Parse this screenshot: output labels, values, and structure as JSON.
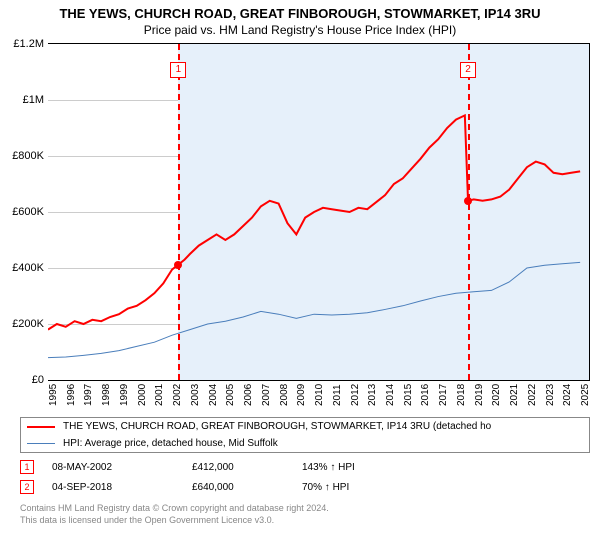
{
  "header": {
    "title": "THE YEWS, CHURCH ROAD, GREAT FINBOROUGH, STOWMARKET, IP14 3RU",
    "subtitle": "Price paid vs. HM Land Registry's House Price Index (HPI)"
  },
  "chart": {
    "type": "line",
    "background_color": "#ffffff",
    "grid_color": "#cccccc",
    "shade_color": "#e6f0fa",
    "refline_color": "#ff0000",
    "ylim": [
      0,
      1200000
    ],
    "ytick_step": 200000,
    "yticks": [
      {
        "v": 0,
        "label": "£0"
      },
      {
        "v": 200000,
        "label": "£200K"
      },
      {
        "v": 400000,
        "label": "£400K"
      },
      {
        "v": 600000,
        "label": "£600K"
      },
      {
        "v": 800000,
        "label": "£800K"
      },
      {
        "v": 1000000,
        "label": "£1M"
      },
      {
        "v": 1200000,
        "label": "£1.2M"
      }
    ],
    "xlim": [
      1995,
      2025.5
    ],
    "xticks": [
      1995,
      1996,
      1997,
      1998,
      1999,
      2000,
      2001,
      2002,
      2003,
      2004,
      2005,
      2006,
      2007,
      2008,
      2009,
      2010,
      2011,
      2012,
      2013,
      2014,
      2015,
      2016,
      2017,
      2018,
      2019,
      2020,
      2021,
      2022,
      2023,
      2024,
      2025
    ],
    "shade_from_x": 2002.35,
    "markers": [
      {
        "n": "1",
        "x": 2002.35,
        "y": 412000
      },
      {
        "n": "2",
        "x": 2018.68,
        "y": 640000
      }
    ],
    "series": [
      {
        "name": "price",
        "color": "#ff0000",
        "width": 2,
        "points": [
          [
            1995,
            180000
          ],
          [
            1995.5,
            200000
          ],
          [
            1996,
            190000
          ],
          [
            1996.5,
            210000
          ],
          [
            1997,
            200000
          ],
          [
            1997.5,
            215000
          ],
          [
            1998,
            210000
          ],
          [
            1998.5,
            225000
          ],
          [
            1999,
            235000
          ],
          [
            1999.5,
            255000
          ],
          [
            2000,
            265000
          ],
          [
            2000.5,
            285000
          ],
          [
            2001,
            310000
          ],
          [
            2001.5,
            345000
          ],
          [
            2002,
            395000
          ],
          [
            2002.35,
            412000
          ],
          [
            2002.7,
            430000
          ],
          [
            2003,
            450000
          ],
          [
            2003.5,
            480000
          ],
          [
            2004,
            500000
          ],
          [
            2004.5,
            520000
          ],
          [
            2005,
            500000
          ],
          [
            2005.5,
            520000
          ],
          [
            2006,
            550000
          ],
          [
            2006.5,
            580000
          ],
          [
            2007,
            620000
          ],
          [
            2007.5,
            640000
          ],
          [
            2008,
            630000
          ],
          [
            2008.5,
            560000
          ],
          [
            2009,
            520000
          ],
          [
            2009.5,
            580000
          ],
          [
            2010,
            600000
          ],
          [
            2010.5,
            615000
          ],
          [
            2011,
            610000
          ],
          [
            2011.5,
            605000
          ],
          [
            2012,
            600000
          ],
          [
            2012.5,
            615000
          ],
          [
            2013,
            610000
          ],
          [
            2013.5,
            635000
          ],
          [
            2014,
            660000
          ],
          [
            2014.5,
            700000
          ],
          [
            2015,
            720000
          ],
          [
            2015.5,
            755000
          ],
          [
            2016,
            790000
          ],
          [
            2016.5,
            830000
          ],
          [
            2017,
            860000
          ],
          [
            2017.5,
            900000
          ],
          [
            2018,
            930000
          ],
          [
            2018.5,
            945000
          ],
          [
            2018.68,
            640000
          ],
          [
            2019,
            645000
          ],
          [
            2019.5,
            640000
          ],
          [
            2020,
            645000
          ],
          [
            2020.5,
            655000
          ],
          [
            2021,
            680000
          ],
          [
            2021.5,
            720000
          ],
          [
            2022,
            760000
          ],
          [
            2022.5,
            780000
          ],
          [
            2023,
            770000
          ],
          [
            2023.5,
            740000
          ],
          [
            2024,
            735000
          ],
          [
            2024.5,
            740000
          ],
          [
            2025,
            745000
          ]
        ]
      },
      {
        "name": "hpi",
        "color": "#4a7ebb",
        "width": 1,
        "points": [
          [
            1995,
            80000
          ],
          [
            1996,
            82000
          ],
          [
            1997,
            88000
          ],
          [
            1998,
            95000
          ],
          [
            1999,
            105000
          ],
          [
            2000,
            120000
          ],
          [
            2001,
            135000
          ],
          [
            2002,
            160000
          ],
          [
            2003,
            180000
          ],
          [
            2004,
            200000
          ],
          [
            2005,
            210000
          ],
          [
            2006,
            225000
          ],
          [
            2007,
            245000
          ],
          [
            2008,
            235000
          ],
          [
            2009,
            220000
          ],
          [
            2010,
            235000
          ],
          [
            2011,
            232000
          ],
          [
            2012,
            235000
          ],
          [
            2013,
            240000
          ],
          [
            2014,
            252000
          ],
          [
            2015,
            265000
          ],
          [
            2016,
            282000
          ],
          [
            2017,
            298000
          ],
          [
            2018,
            310000
          ],
          [
            2019,
            315000
          ],
          [
            2020,
            320000
          ],
          [
            2021,
            350000
          ],
          [
            2022,
            400000
          ],
          [
            2023,
            410000
          ],
          [
            2024,
            415000
          ],
          [
            2025,
            420000
          ]
        ]
      }
    ]
  },
  "legend": {
    "items": [
      {
        "color": "#ff0000",
        "width": 2,
        "label": "THE YEWS, CHURCH ROAD, GREAT FINBOROUGH, STOWMARKET, IP14 3RU (detached ho"
      },
      {
        "color": "#4a7ebb",
        "width": 1,
        "label": "HPI: Average price, detached house, Mid Suffolk"
      }
    ]
  },
  "marker_table": {
    "rows": [
      {
        "n": "1",
        "date": "08-MAY-2002",
        "price": "£412,000",
        "pct": "143% ↑ HPI"
      },
      {
        "n": "2",
        "date": "04-SEP-2018",
        "price": "£640,000",
        "pct": "70% ↑ HPI"
      }
    ],
    "box_color": "#ff0000"
  },
  "footer": {
    "line1": "Contains HM Land Registry data © Crown copyright and database right 2024.",
    "line2": "This data is licensed under the Open Government Licence v3.0."
  }
}
